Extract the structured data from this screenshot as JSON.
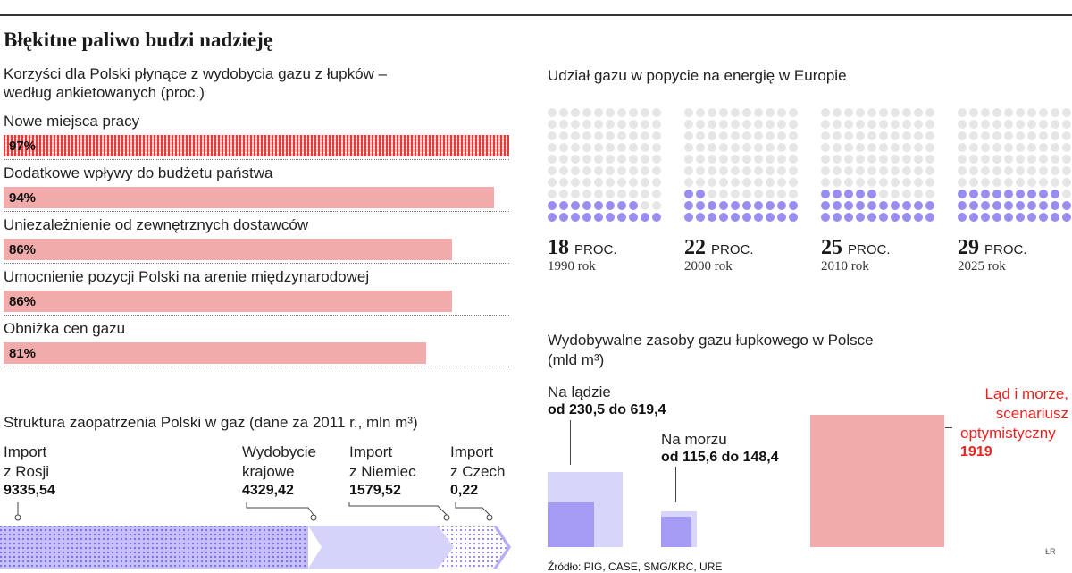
{
  "title": "Błękitne paliwo budzi nadzieję",
  "benefits": {
    "title": "Korzyści dla Polski płynące z wydobycia gazu z łupków – według ankietowanych (proc.)",
    "items": [
      {
        "label": "Nowe miejsca pracy",
        "value": 97,
        "value_label": "97%"
      },
      {
        "label": "Dodatkowe wpływy do budżetu państwa",
        "value": 94,
        "value_label": "94%"
      },
      {
        "label": "Uniezależnienie od zewnętrznych dostawców",
        "value": 86,
        "value_label": "86%"
      },
      {
        "label": "Umocnienie pozycji Polski na arenie międzynarodowej",
        "value": 86,
        "value_label": "86%"
      },
      {
        "label": "Obniżka cen gazu",
        "value": 81,
        "value_label": "81%"
      }
    ]
  },
  "share": {
    "title": "Udział gazu w popycie na energię w Europie",
    "items": [
      {
        "value": "18",
        "unit": "PROC.",
        "year": "1990 rok",
        "pct": 18
      },
      {
        "value": "22",
        "unit": "PROC.",
        "year": "2000 rok",
        "pct": 22
      },
      {
        "value": "25",
        "unit": "PROC.",
        "year": "2010 rok",
        "pct": 25
      },
      {
        "value": "29",
        "unit": "PROC.",
        "year": "2025 rok",
        "pct": 29
      }
    ]
  },
  "supply": {
    "title": "Struktura zaopatrzenia Polski w gaz (dane za 2011 r., mln m³)",
    "items": [
      {
        "line1": "Import",
        "line2": "z Rosji",
        "value_label": "9335,54",
        "value": 9335.54
      },
      {
        "line1": "Wydobycie",
        "line2": "krajowe",
        "value_label": "4329,42",
        "value": 4329.42
      },
      {
        "line1": "Import",
        "line2": "z Niemiec",
        "value_label": "1579,52",
        "value": 1579.52
      },
      {
        "line1": "Import",
        "line2": "z Czech",
        "value_label": "0,22",
        "value": 0.22
      }
    ]
  },
  "reserves": {
    "title_line1": "Wydobywalne zasoby gazu łupkowego w Polsce",
    "title_line2": "(mld m³)",
    "land_label": "Na lądzie",
    "land_value": "od 230,5 do 619,4",
    "sea_label": "Na morzu",
    "sea_value": "od 115,6 do 148,4",
    "total_line1": "Ląd i morze,",
    "total_line2": "scenariusz",
    "total_line3": "optymistyczny",
    "total_value": "1919"
  },
  "chart_data": [
    {
      "type": "bar",
      "title": "Korzyści dla Polski płynące z wydobycia gazu z łupków – według ankietowanych (proc.)",
      "categories": [
        "Nowe miejsca pracy",
        "Dodatkowe wpływy do budżetu państwa",
        "Uniezależnienie od zewnętrznych dostawców",
        "Umocnienie pozycji Polski na arenie międzynarodowej",
        "Obniżka cen gazu"
      ],
      "values": [
        97,
        94,
        86,
        86,
        81
      ]
    },
    {
      "type": "other",
      "title": "Udział gazu w popycie na energię w Europie",
      "categories": [
        "1990 rok",
        "2000 rok",
        "2010 rok",
        "2025 rok"
      ],
      "values": [
        18,
        22,
        25,
        29
      ]
    },
    {
      "type": "bar",
      "title": "Struktura zaopatrzenia Polski w gaz (dane za 2011 r., mln m³)",
      "categories": [
        "Import z Rosji",
        "Wydobycie krajowe",
        "Import z Niemiec",
        "Import z Czech"
      ],
      "values": [
        9335.54,
        4329.42,
        1579.52,
        0.22
      ]
    },
    {
      "type": "other",
      "title": "Wydobywalne zasoby gazu łupkowego w Polsce (mld m³)",
      "categories": [
        "Na lądzie",
        "Na morzu",
        "Ląd i morze, scenariusz optymistyczny"
      ],
      "ranges": [
        [
          230.5,
          619.4
        ],
        [
          115.6,
          148.4
        ],
        [
          1919,
          1919
        ]
      ]
    }
  ],
  "source": "Źródło: PIG, CASE, SMG/KRC, URE",
  "author": "ŁR",
  "colors": {
    "red": "#e8231f",
    "pink": "#f2abab",
    "purple": "#9a8df0",
    "lavender": "#d5d2fb",
    "grey_dot": "#e6e6e6"
  }
}
